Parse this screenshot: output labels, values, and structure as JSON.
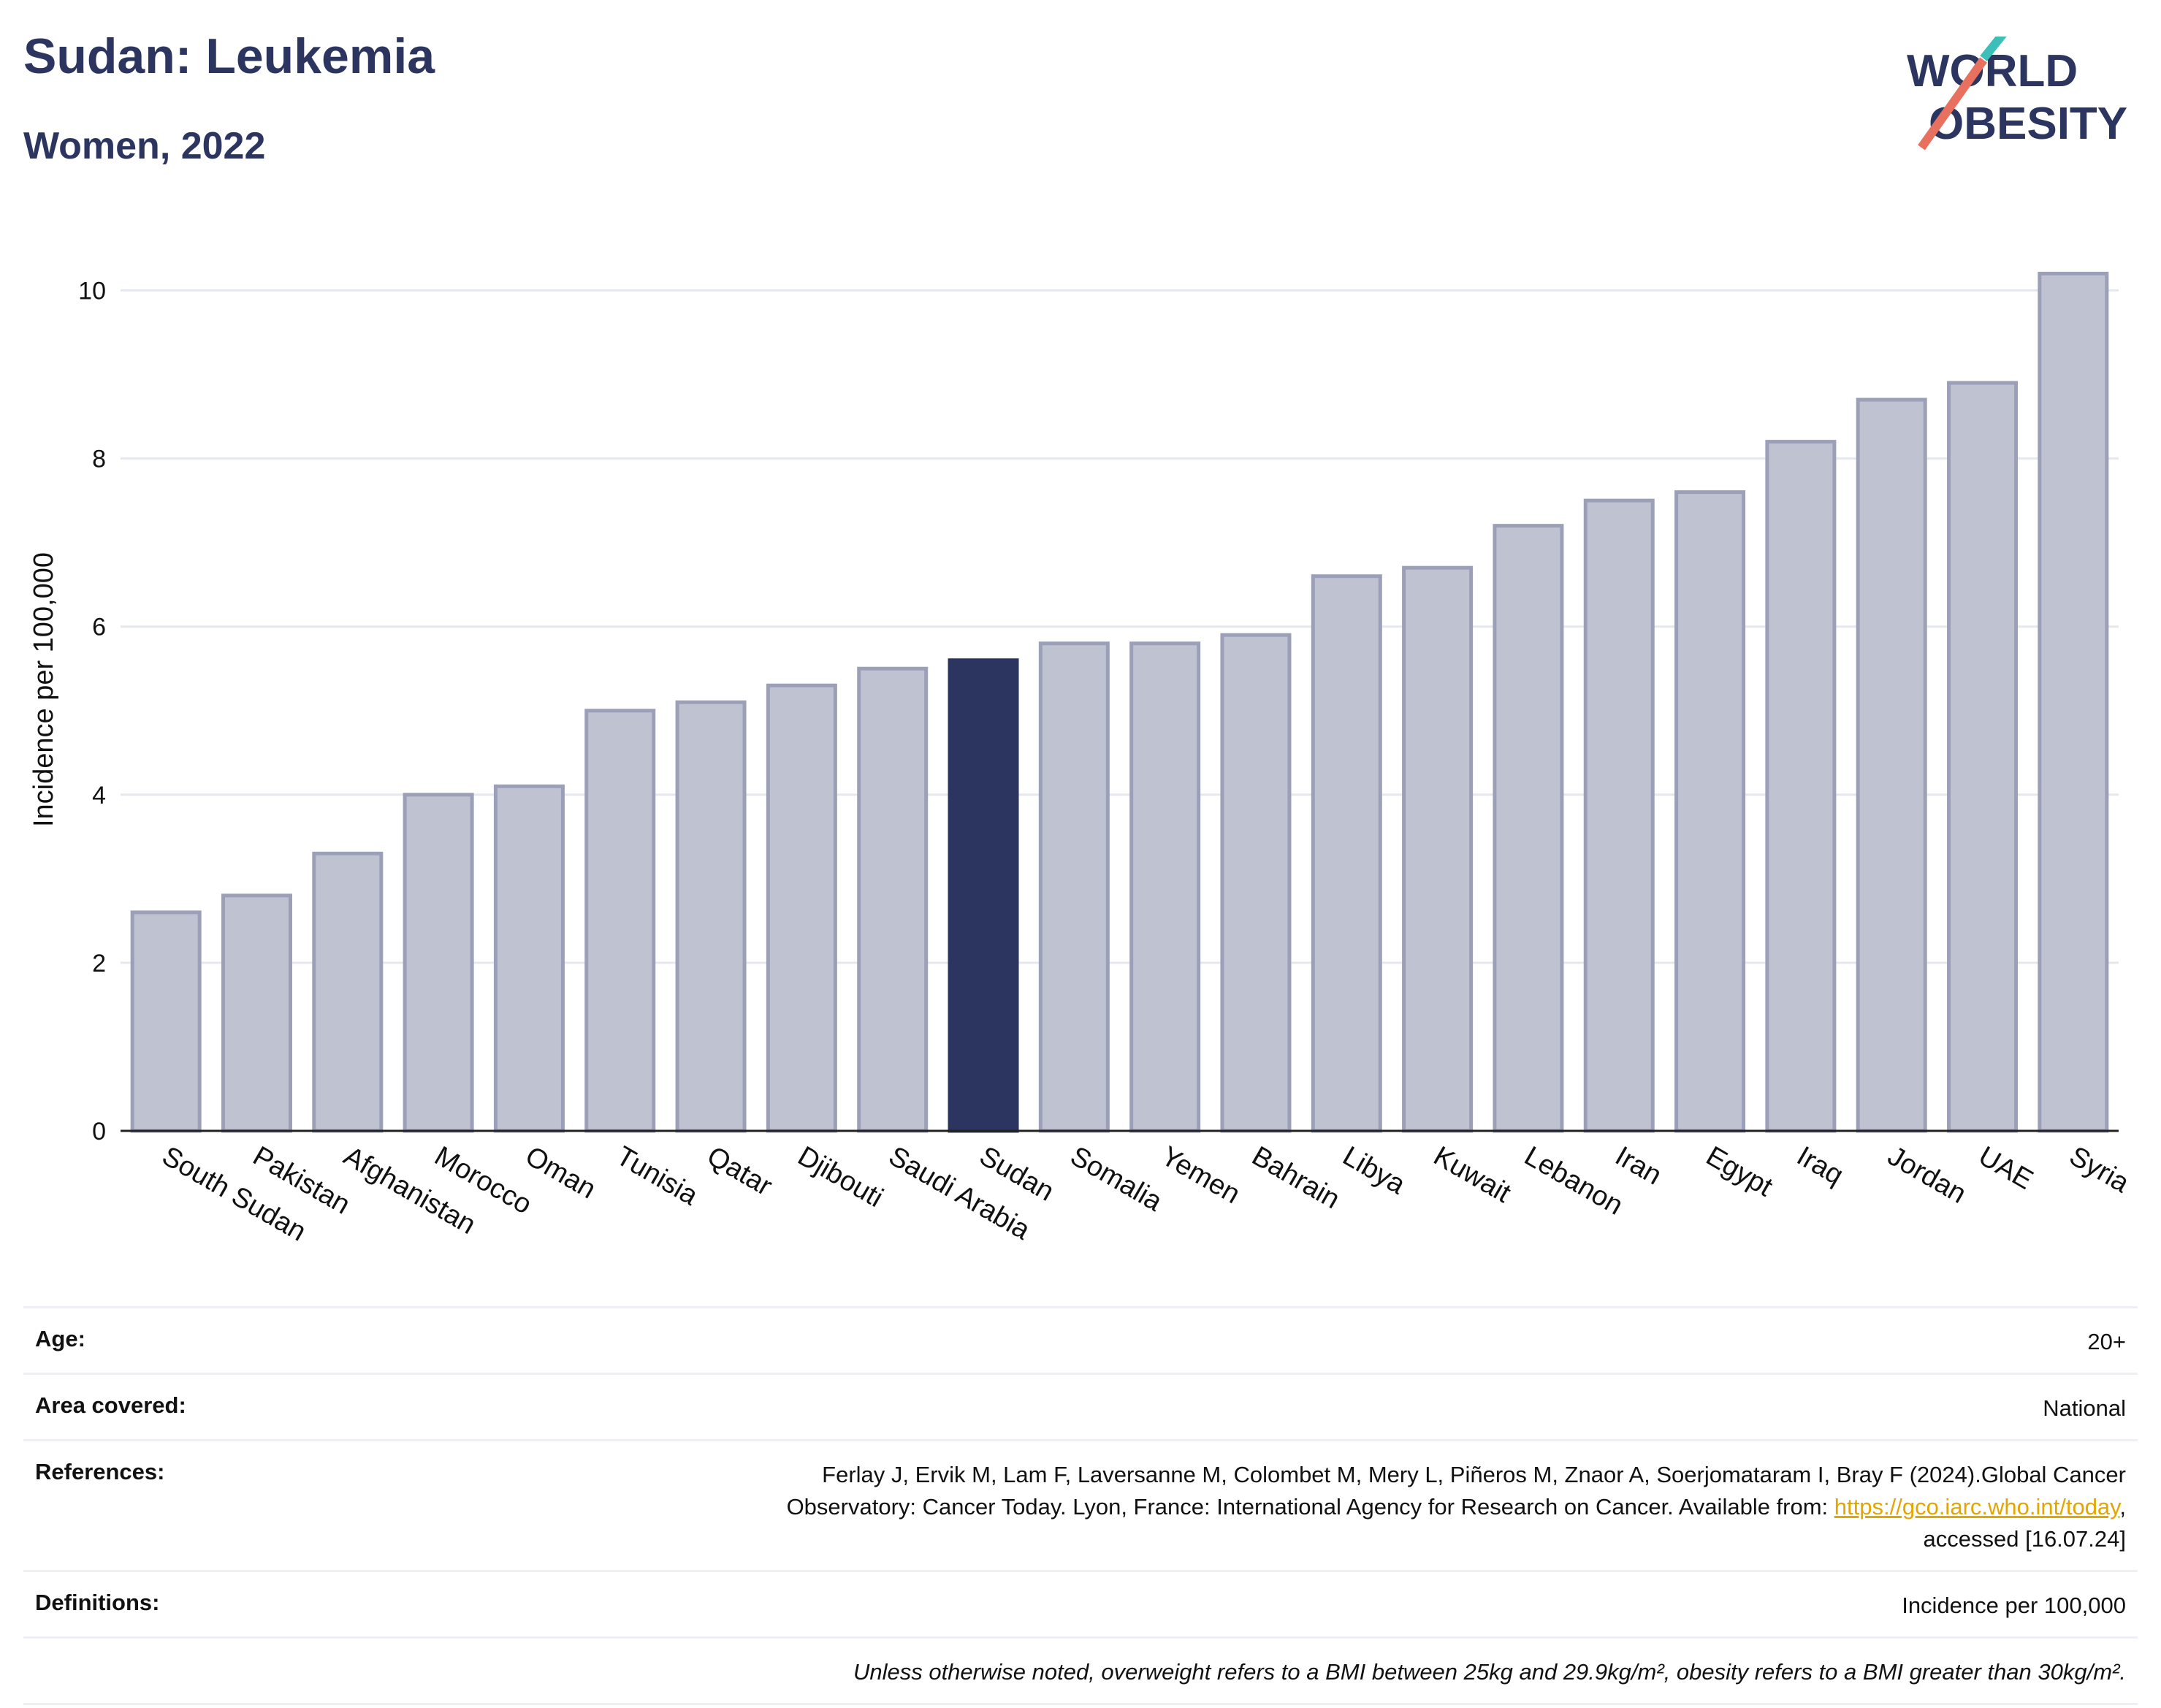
{
  "header": {
    "title": "Sudan: Leukemia",
    "subtitle": "Women, 2022"
  },
  "logo": {
    "line1": "WORLD",
    "line2": "OBESITY",
    "colors": {
      "text": "#2b3560",
      "slash_top": "#3bbfb8",
      "slash_bottom": "#e8705f"
    }
  },
  "colors": {
    "bar_fill": "#bfc2d0",
    "bar_stroke": "#9ba0b8",
    "highlight": "#2b3560",
    "grid": "#e6e8f0",
    "axis": "#222222"
  },
  "chart_data": {
    "type": "bar",
    "title": "Sudan: Leukemia",
    "subtitle": "Women, 2022",
    "ylabel": "Incidence per 100,000",
    "xlabel": "",
    "ylim": [
      0,
      10.5
    ],
    "yticks": [
      0,
      2,
      4,
      6,
      8,
      10
    ],
    "grid": true,
    "highlight": "Sudan",
    "categories": [
      "South Sudan",
      "Pakistan",
      "Afghanistan",
      "Morocco",
      "Oman",
      "Tunisia",
      "Qatar",
      "Djibouti",
      "Saudi Arabia",
      "Sudan",
      "Somalia",
      "Yemen",
      "Bahrain",
      "Libya",
      "Kuwait",
      "Lebanon",
      "Iran",
      "Egypt",
      "Iraq",
      "Jordan",
      "UAE",
      "Syria"
    ],
    "values": [
      2.6,
      2.8,
      3.3,
      4.0,
      4.1,
      5.0,
      5.1,
      5.3,
      5.5,
      5.6,
      5.8,
      5.8,
      5.9,
      6.6,
      6.7,
      7.2,
      7.5,
      7.6,
      8.2,
      8.7,
      8.9,
      10.2
    ]
  },
  "info": {
    "age_label": "Age:",
    "age_value": "20+",
    "area_label": "Area covered:",
    "area_value": "National",
    "references_label": "References:",
    "references_line1": "Ferlay J, Ervik M, Lam F, Laversanne M, Colombet M, Mery L, Piñeros M, Znaor A, Soerjomataram I, Bray F (2024).Global Cancer",
    "references_line2_pre": "Observatory: Cancer Today. Lyon, France: International Agency for Research on Cancer. Available from: ",
    "references_link": "https://gco.iarc.who.int/today",
    "references_line2_post": ",",
    "references_line3": "accessed [16.07.24]",
    "definitions_label": "Definitions:",
    "definitions_value": "Incidence per 100,000",
    "note": "Unless otherwise noted, overweight refers to a BMI between 25kg and 29.9kg/m², obesity refers to a BMI greater than 30kg/m²."
  }
}
